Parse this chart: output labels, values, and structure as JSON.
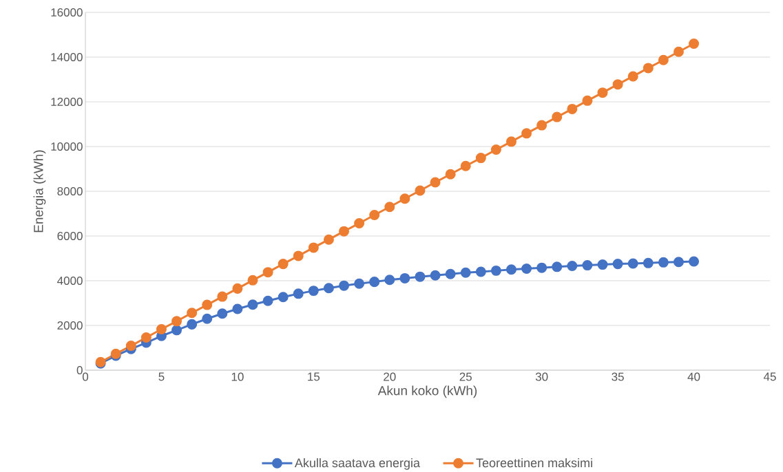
{
  "chart_data": {
    "type": "line",
    "xlabel": "Akun koko (kWh)",
    "ylabel": "Energia (kWh)",
    "x": [
      1,
      2,
      3,
      4,
      5,
      6,
      7,
      8,
      9,
      10,
      11,
      12,
      13,
      14,
      15,
      16,
      17,
      18,
      19,
      20,
      21,
      22,
      23,
      24,
      25,
      26,
      27,
      28,
      29,
      30,
      31,
      32,
      33,
      34,
      35,
      36,
      37,
      38,
      39,
      40
    ],
    "series": [
      {
        "name": "Akulla saatava energia",
        "color": "#4472c4",
        "values": [
          300,
          650,
          950,
          1230,
          1530,
          1790,
          2050,
          2300,
          2530,
          2740,
          2930,
          3100,
          3270,
          3420,
          3550,
          3670,
          3780,
          3870,
          3950,
          4040,
          4110,
          4180,
          4240,
          4300,
          4360,
          4400,
          4450,
          4500,
          4540,
          4580,
          4620,
          4660,
          4690,
          4720,
          4750,
          4770,
          4790,
          4820,
          4840,
          4860
        ]
      },
      {
        "name": "Teoreettinen maksimi",
        "color": "#ed7d31",
        "values": [
          360,
          730,
          1090,
          1460,
          1830,
          2190,
          2560,
          2920,
          3290,
          3650,
          4020,
          4380,
          4750,
          5110,
          5480,
          5840,
          6210,
          6570,
          6940,
          7300,
          7670,
          8030,
          8400,
          8760,
          9130,
          9490,
          9860,
          10220,
          10590,
          10950,
          11320,
          11680,
          12050,
          12410,
          12780,
          13140,
          13510,
          13870,
          14240,
          14600
        ]
      }
    ],
    "xlim": [
      0,
      45
    ],
    "xticks": [
      0,
      5,
      10,
      15,
      20,
      25,
      30,
      35,
      40,
      45
    ],
    "ylim": [
      0,
      16000
    ],
    "yticks": [
      0,
      2000,
      4000,
      6000,
      8000,
      10000,
      12000,
      14000,
      16000
    ],
    "grid": "y",
    "legend": "bottom",
    "marker": "circle",
    "line_style": "solid"
  }
}
